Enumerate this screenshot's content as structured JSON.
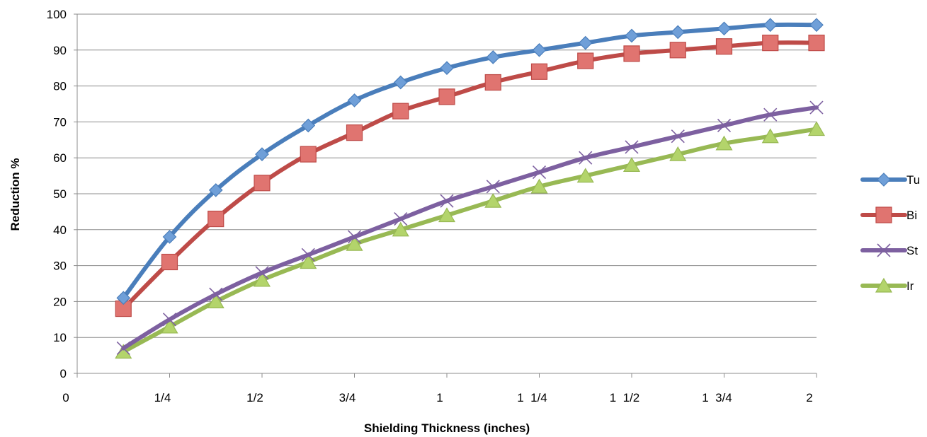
{
  "chart_data": {
    "type": "line",
    "title": "",
    "xlabel": "Shielding Thickness (inches)",
    "ylabel": "Reduction %",
    "xlim": [
      0,
      2
    ],
    "ylim": [
      0,
      100
    ],
    "y_ticks": [
      0,
      10,
      20,
      30,
      40,
      50,
      60,
      70,
      80,
      90,
      100
    ],
    "x_ticks": [
      {
        "value": 0,
        "label": "0"
      },
      {
        "value": 0.25,
        "label": "1/4"
      },
      {
        "value": 0.5,
        "label": "1/2"
      },
      {
        "value": 0.75,
        "label": "3/4"
      },
      {
        "value": 1,
        "label": "1"
      },
      {
        "value": 1.25,
        "label": "1  1/4"
      },
      {
        "value": 1.5,
        "label": "1  1/2"
      },
      {
        "value": 1.75,
        "label": "1  3/4"
      },
      {
        "value": 2,
        "label": "2"
      }
    ],
    "grid": "horizontal",
    "legend_position": "right",
    "x": [
      0.125,
      0.25,
      0.375,
      0.5,
      0.625,
      0.75,
      0.875,
      1.0,
      1.125,
      1.25,
      1.375,
      1.5,
      1.625,
      1.75,
      1.875,
      2.0
    ],
    "series": [
      {
        "name": "Tu",
        "color": "#4a7ebb",
        "fill": "#6f9fd8",
        "marker": "diamond",
        "values": [
          21,
          38,
          51,
          61,
          69,
          76,
          81,
          85,
          88,
          90,
          92,
          94,
          95,
          96,
          97,
          97
        ]
      },
      {
        "name": "Bi",
        "color": "#be4b48",
        "fill": "#e07470",
        "marker": "square",
        "values": [
          18,
          31,
          43,
          53,
          61,
          67,
          73,
          77,
          81,
          84,
          87,
          89,
          90,
          91,
          92,
          92
        ]
      },
      {
        "name": "St",
        "color": "#7d60a0",
        "fill": "#7d60a0",
        "marker": "x",
        "values": [
          7,
          15,
          22,
          28,
          33,
          38,
          43,
          48,
          52,
          56,
          60,
          63,
          66,
          69,
          72,
          74
        ]
      },
      {
        "name": "Ir",
        "color": "#98b954",
        "fill": "#b3d46b",
        "marker": "triangle",
        "values": [
          6,
          13,
          20,
          26,
          31,
          36,
          40,
          44,
          48,
          52,
          55,
          58,
          61,
          64,
          66,
          68
        ]
      }
    ]
  }
}
